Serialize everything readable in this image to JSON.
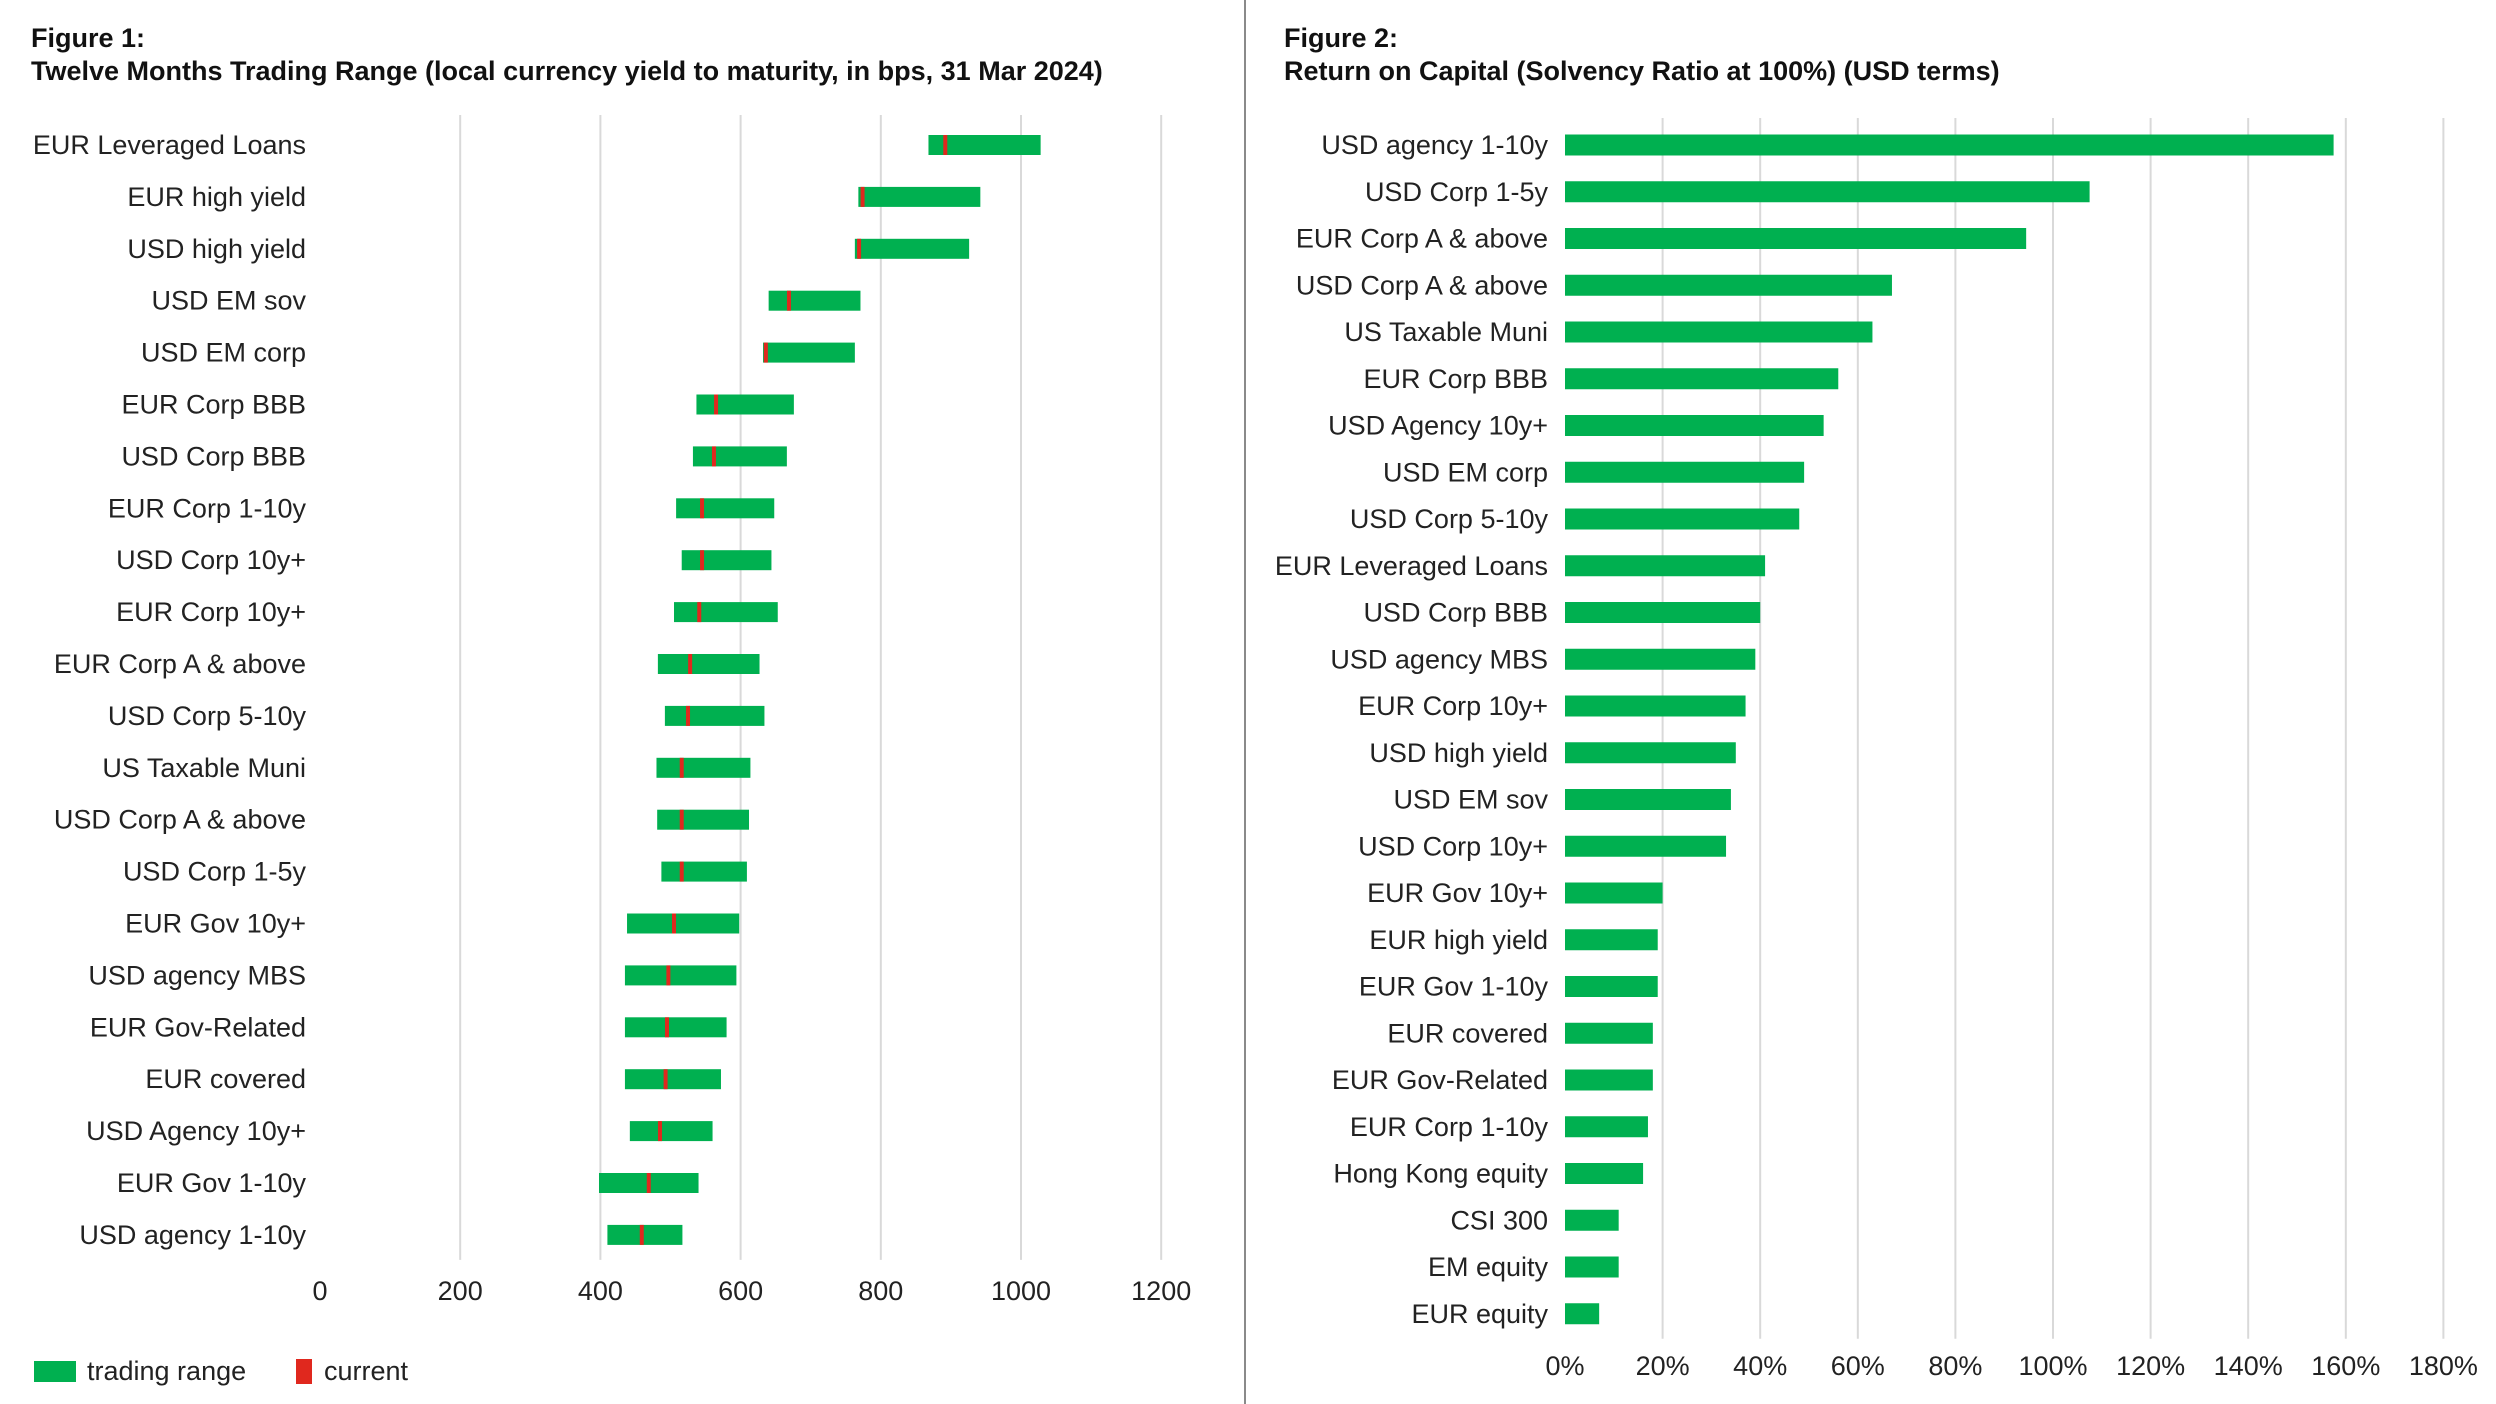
{
  "figures": [
    {
      "title_line1": "Figure 1:",
      "title_line2": "Twelve Months Trading Range (local currency yield to maturity, in bps, 31 Mar 2024)"
    },
    {
      "title_line1": "Figure 2:",
      "title_line2": "Return on Capital (Solvency Ratio at 100%) (USD terms)"
    }
  ],
  "chart_data": [
    {
      "type": "bar",
      "subtype": "floating-range",
      "title": "Twelve Months Trading Range (local currency yield to maturity, in bps, 31 Mar 2024)",
      "xlabel": "",
      "ylabel": "",
      "xlim": [
        0,
        1200
      ],
      "xticks": [
        0,
        200,
        400,
        600,
        800,
        1000,
        1200
      ],
      "grid": true,
      "colors": {
        "range": "#00b050",
        "current": "#e0281e"
      },
      "legend": {
        "position": "bottom-left",
        "entries": [
          "trading range",
          "current"
        ]
      },
      "categories": [
        "EUR Leveraged Loans",
        "EUR high yield",
        "USD high yield",
        "USD EM sov",
        "USD EM corp",
        "EUR Corp BBB",
        "USD Corp BBB",
        "EUR Corp 1-10y",
        "USD Corp 10y+",
        "EUR Corp 10y+",
        "EUR Corp A & above",
        "USD Corp 5-10y",
        "US Taxable Muni",
        "USD Corp A & above",
        "USD Corp 1-5y",
        "EUR Gov 10y+",
        "USD agency MBS",
        "EUR Gov-Related",
        "EUR covered",
        "USD Agency 10y+",
        "EUR Gov 1-10y",
        "USD agency 1-10y"
      ],
      "low": [
        868,
        768,
        763,
        640,
        632,
        537,
        532,
        508,
        516,
        505,
        482,
        492,
        480,
        481,
        487,
        438,
        435,
        435,
        435,
        442,
        398,
        410
      ],
      "high": [
        1028,
        942,
        926,
        771,
        763,
        676,
        666,
        648,
        644,
        653,
        627,
        634,
        614,
        612,
        609,
        598,
        594,
        580,
        572,
        560,
        540,
        517
      ],
      "current": [
        892,
        774,
        769,
        669,
        636,
        565,
        562,
        545,
        545,
        541,
        528,
        525,
        516,
        516,
        516,
        505,
        497,
        495,
        493,
        485,
        469,
        459
      ]
    },
    {
      "type": "bar",
      "orientation": "horizontal",
      "title": "Return on Capital (Solvency Ratio at 100%) (USD terms)",
      "xlabel": "",
      "ylabel": "",
      "unit": "%",
      "xlim": [
        0,
        180
      ],
      "xticks": [
        0,
        20,
        40,
        60,
        80,
        100,
        120,
        140,
        160,
        180
      ],
      "grid": true,
      "colors": {
        "bar": "#00b050"
      },
      "categories": [
        "USD agency 1-10y",
        "USD Corp 1-5y",
        "EUR Corp A & above",
        "USD Corp A & above",
        "US Taxable Muni",
        "EUR Corp BBB",
        "USD Agency 10y+",
        "USD EM corp",
        "USD Corp 5-10y",
        "EUR Leveraged Loans",
        "USD Corp BBB",
        "USD agency MBS",
        "EUR Corp 10y+",
        "USD high yield",
        "USD EM sov",
        "USD Corp 10y+",
        "EUR Gov 10y+",
        "EUR high yield",
        "EUR Gov 1-10y",
        "EUR covered",
        "EUR Gov-Related",
        "EUR Corp 1-10y",
        "Hong Kong equity",
        "CSI 300",
        "EM equity",
        "EUR equity"
      ],
      "values": [
        157.5,
        107.5,
        94.5,
        67,
        63,
        56,
        53,
        49,
        48,
        41,
        40,
        39,
        37,
        35,
        34,
        33,
        20,
        19,
        19,
        18,
        18,
        17,
        16,
        11,
        11,
        7
      ]
    }
  ]
}
